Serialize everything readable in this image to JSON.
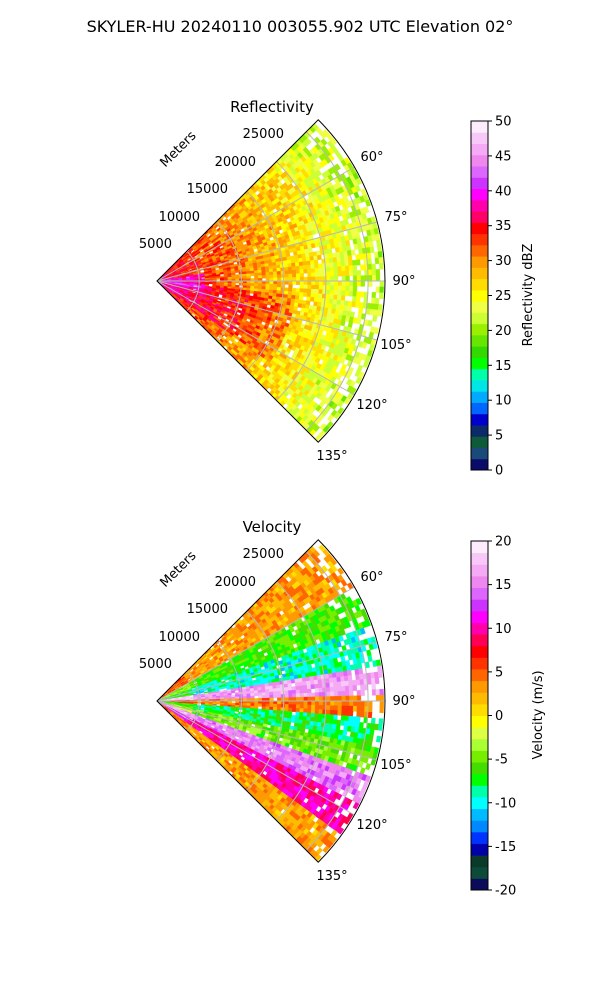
{
  "figure": {
    "suptitle": "SKYLER-HU  20240110  003055.902 UTC Elevation 02°"
  },
  "colormaps": {
    "reflectivity": [
      "#0b0b6b",
      "#1a4a7a",
      "#0e5a3a",
      "#0a2a6a",
      "#0000cc",
      "#0066ff",
      "#00aaff",
      "#00e5e5",
      "#00ffaa",
      "#00ff00",
      "#33d900",
      "#66e600",
      "#99f000",
      "#ccff33",
      "#eeff44",
      "#ffff00",
      "#ffdd00",
      "#ffbb00",
      "#ff9900",
      "#ff6600",
      "#ff3300",
      "#ff0000",
      "#ff0066",
      "#ff00aa",
      "#ff00ff",
      "#cc33ff",
      "#dd66ff",
      "#ee88ee",
      "#f4aaf4",
      "#f8c8f8",
      "#fcecfc"
    ],
    "velocity": [
      "#0b0b5b",
      "#0e4a3a",
      "#0a3a2a",
      "#0000aa",
      "#0033ff",
      "#0088ff",
      "#00bbff",
      "#00ffff",
      "#00ffaa",
      "#00ff00",
      "#44dd00",
      "#77ee00",
      "#aaff33",
      "#ddff44",
      "#ffff00",
      "#ffdd00",
      "#ffbb00",
      "#ff9900",
      "#ff6600",
      "#ff3300",
      "#ff0000",
      "#ff0055",
      "#ff00aa",
      "#ff00ff",
      "#cc33ff",
      "#dd66ff",
      "#ee88ee",
      "#f4aaf4",
      "#f8c8f8",
      "#fcecfc"
    ]
  },
  "chart_data": [
    {
      "type": "heatmap",
      "plot": "ppi-sector",
      "title": "Reflectivity",
      "radial_label": "Meters",
      "range_ticks": [
        5000,
        10000,
        15000,
        20000,
        25000
      ],
      "range_tick_labels": [
        "5000",
        "10000",
        "15000",
        "20000",
        "25000"
      ],
      "max_range_m": 27000,
      "azimuth_range_deg": [
        45,
        135
      ],
      "azimuth_ticks": [
        60,
        75,
        90,
        105,
        120,
        135
      ],
      "azimuth_tick_labels": [
        "60°",
        "75°",
        "90°",
        "105°",
        "120°",
        "135°"
      ],
      "colorbar": {
        "label": "Reflectivity dBZ",
        "vmin": 0,
        "vmax": 50,
        "ticks": [
          0,
          5,
          10,
          15,
          20,
          25,
          30,
          35,
          40,
          45,
          50
        ]
      },
      "field_description_values_dbz": {
        "near_range_core": 38,
        "inner_ring": 32,
        "middle_ring": 28,
        "outer_edge": 23
      }
    },
    {
      "type": "heatmap",
      "plot": "ppi-sector",
      "title": "Velocity",
      "radial_label": "Meters",
      "range_ticks": [
        5000,
        10000,
        15000,
        20000,
        25000
      ],
      "range_tick_labels": [
        "5000",
        "10000",
        "15000",
        "20000",
        "25000"
      ],
      "max_range_m": 27000,
      "azimuth_range_deg": [
        45,
        135
      ],
      "azimuth_ticks": [
        60,
        75,
        90,
        105,
        120,
        135
      ],
      "azimuth_tick_labels": [
        "60°",
        "75°",
        "90°",
        "105°",
        "120°",
        "135°"
      ],
      "colorbar": {
        "label": "Velocity (m/s)",
        "vmin": -20,
        "vmax": 20,
        "ticks": [
          -20,
          -15,
          -10,
          -5,
          0,
          5,
          10,
          15,
          20
        ]
      },
      "azimuth_band_values_ms": [
        {
          "azimuth": 55,
          "velocity": 3
        },
        {
          "azimuth": 63,
          "velocity": -6
        },
        {
          "azimuth": 75,
          "velocity": -9
        },
        {
          "azimuth": 84,
          "velocity": 16
        },
        {
          "azimuth": 91,
          "velocity": 4
        },
        {
          "azimuth": 97,
          "velocity": -8
        },
        {
          "azimuth": 105,
          "velocity": -5
        },
        {
          "azimuth": 112,
          "velocity": 15
        },
        {
          "azimuth": 120,
          "velocity": 10
        },
        {
          "azimuth": 130,
          "velocity": 3
        }
      ]
    }
  ]
}
